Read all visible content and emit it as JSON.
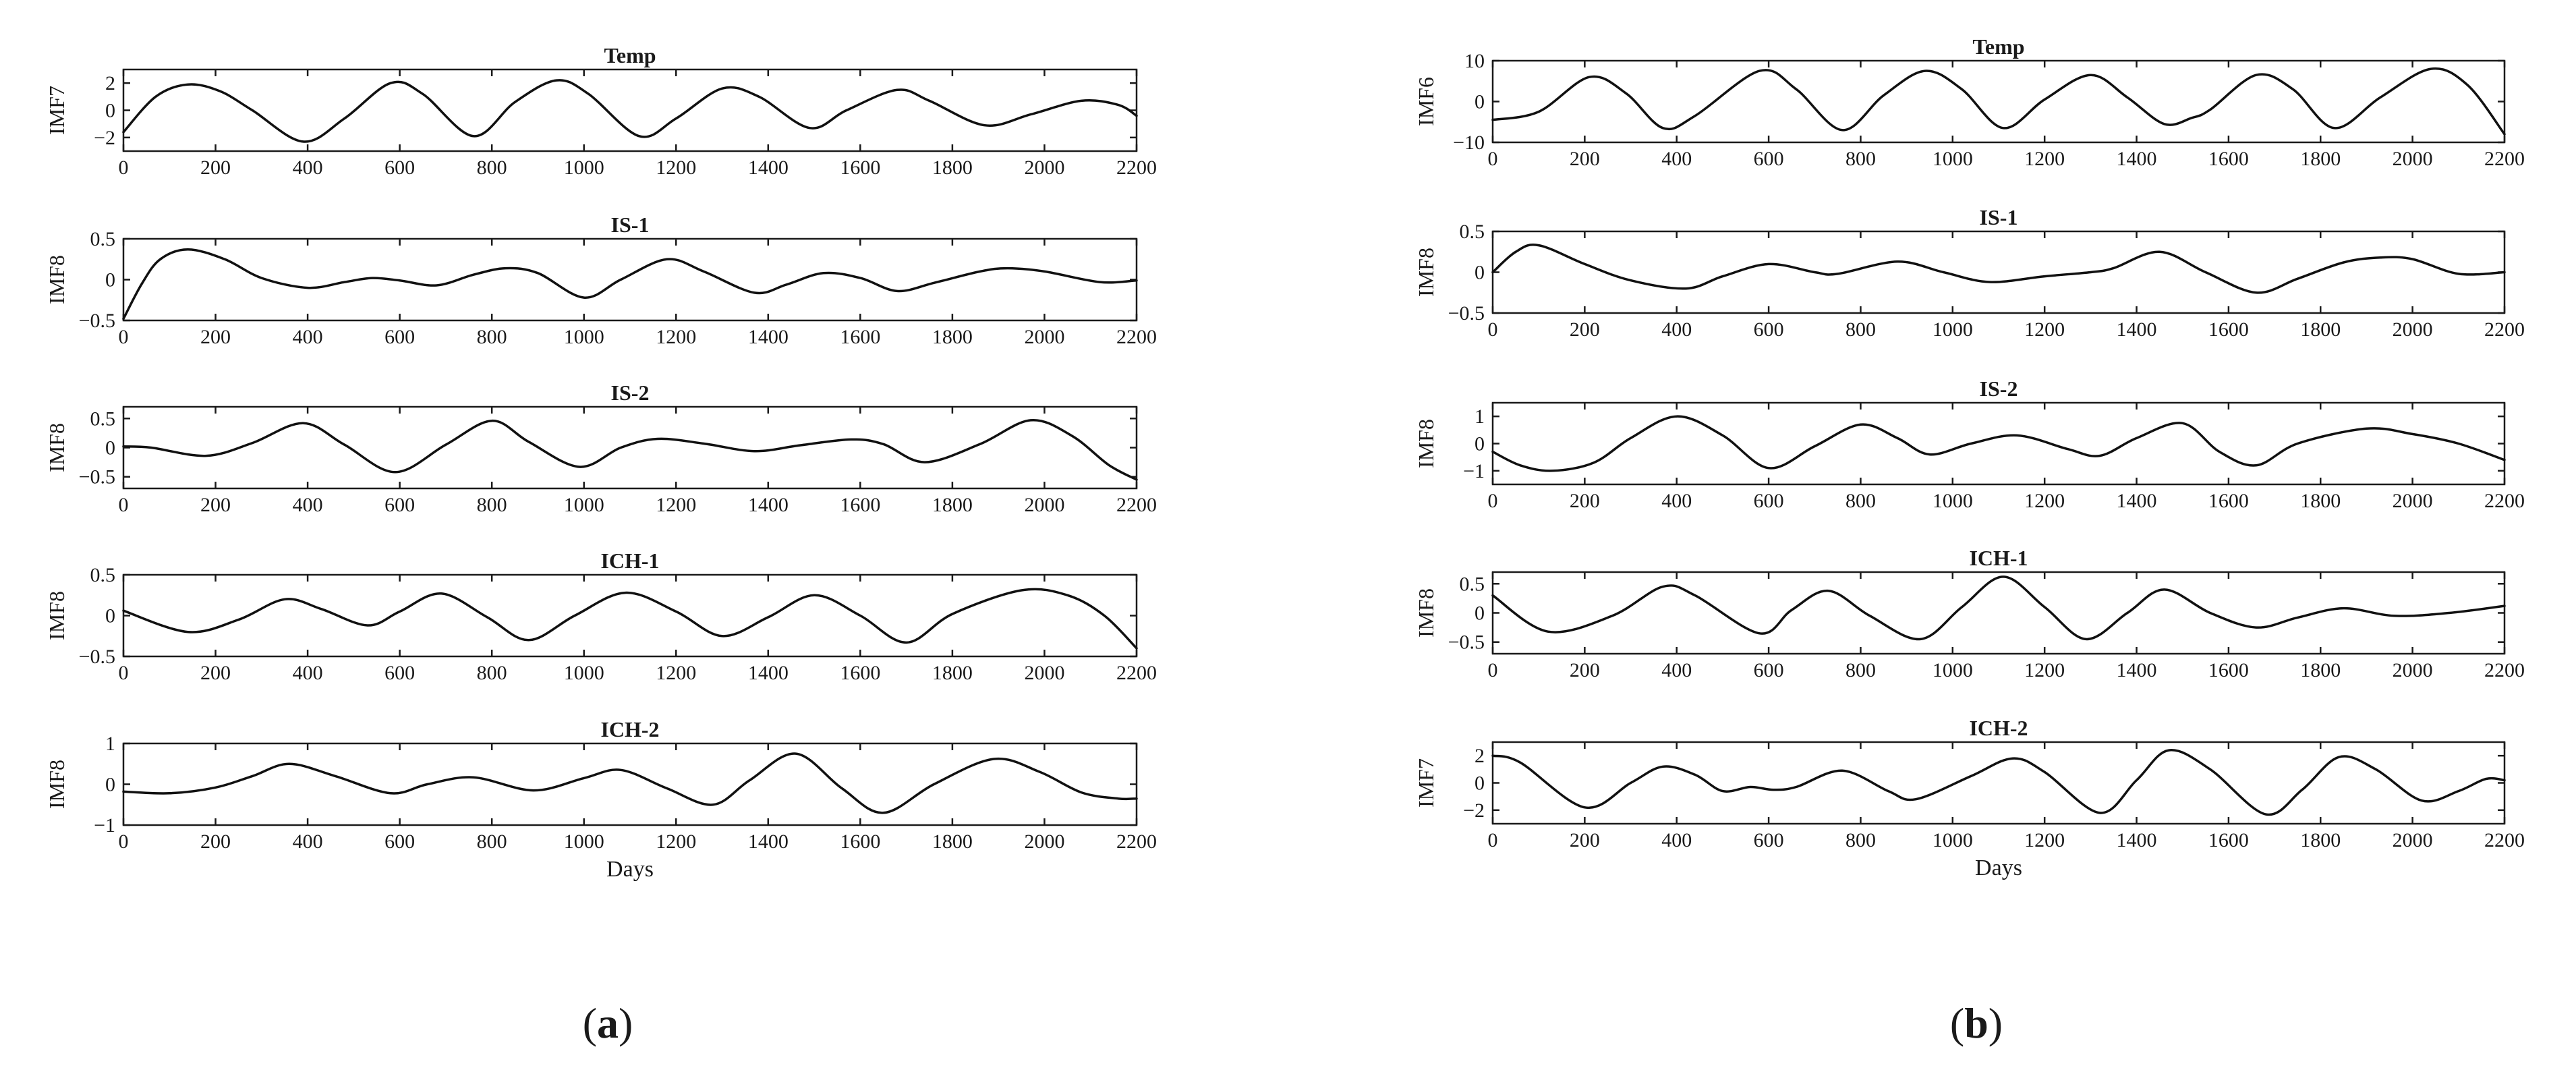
{
  "figure": {
    "captions": [
      "(a)",
      "(b)"
    ],
    "caption_parts": [
      {
        "open": "(",
        "letter": "a",
        "close": ")"
      },
      {
        "open": "(",
        "letter": "b",
        "close": ")"
      }
    ]
  },
  "chart_data": [
    {
      "type": "line",
      "group": "a",
      "title": "Temp",
      "ylabel": "IMF7",
      "xlabel": "",
      "xlim": [
        0,
        2200
      ],
      "ylim": [
        -3,
        3
      ],
      "xticks": [
        "0",
        "200",
        "400",
        "600",
        "800",
        "1000",
        "1200",
        "1400",
        "1600",
        "1800",
        "2000",
        "2200"
      ],
      "yticks": [
        "2",
        "0",
        "−2"
      ],
      "series": [
        {
          "x": [
            0,
            70,
            140,
            210,
            280,
            390,
            480,
            580,
            650,
            760,
            850,
            940,
            1010,
            1120,
            1200,
            1300,
            1380,
            1490,
            1570,
            1680,
            1750,
            1870,
            1970,
            2080,
            2160,
            2200
          ],
          "y": [
            -1.6,
            1.0,
            1.9,
            1.4,
            0.0,
            -2.3,
            -0.6,
            2.0,
            1.2,
            -1.9,
            0.6,
            2.2,
            1.2,
            -1.9,
            -0.6,
            1.6,
            1.0,
            -1.3,
            0.0,
            1.5,
            0.7,
            -1.1,
            -0.3,
            0.7,
            0.4,
            -0.4
          ]
        }
      ]
    },
    {
      "type": "line",
      "group": "a",
      "title": "IS-1",
      "ylabel": "IMF8",
      "xlabel": "",
      "xlim": [
        0,
        2200
      ],
      "ylim": [
        -0.5,
        0.5
      ],
      "xticks": [
        "0",
        "200",
        "400",
        "600",
        "800",
        "1000",
        "1200",
        "1400",
        "1600",
        "1800",
        "2000",
        "2200"
      ],
      "yticks": [
        "0.5",
        "0",
        "−0.5"
      ],
      "series": [
        {
          "x": [
            0,
            40,
            80,
            140,
            220,
            300,
            400,
            480,
            540,
            600,
            680,
            760,
            830,
            900,
            1000,
            1080,
            1180,
            1260,
            1370,
            1440,
            1520,
            1600,
            1680,
            1760,
            1860,
            1920,
            2000,
            2120,
            2200
          ],
          "y": [
            -0.48,
            -0.05,
            0.25,
            0.37,
            0.25,
            0.02,
            -0.1,
            -0.03,
            0.02,
            -0.01,
            -0.07,
            0.06,
            0.14,
            0.08,
            -0.22,
            0.0,
            0.25,
            0.1,
            -0.16,
            -0.06,
            0.08,
            0.02,
            -0.14,
            -0.04,
            0.1,
            0.14,
            0.1,
            -0.03,
            -0.01
          ]
        }
      ]
    },
    {
      "type": "line",
      "group": "a",
      "title": "IS-2",
      "ylabel": "IMF8",
      "xlabel": "",
      "xlim": [
        0,
        2200
      ],
      "ylim": [
        -0.7,
        0.7
      ],
      "xticks": [
        "0",
        "200",
        "400",
        "600",
        "800",
        "1000",
        "1200",
        "1400",
        "1600",
        "1800",
        "2000",
        "2200"
      ],
      "yticks": [
        "0.5",
        "0",
        "−0.5"
      ],
      "series": [
        {
          "x": [
            0,
            60,
            180,
            280,
            390,
            480,
            590,
            700,
            800,
            880,
            990,
            1080,
            1160,
            1260,
            1370,
            1470,
            1580,
            1650,
            1740,
            1860,
            1970,
            2060,
            2140,
            2200
          ],
          "y": [
            0.02,
            0.0,
            -0.14,
            0.08,
            0.42,
            0.05,
            -0.42,
            0.05,
            0.46,
            0.1,
            -0.33,
            0.0,
            0.15,
            0.07,
            -0.06,
            0.04,
            0.14,
            0.06,
            -0.25,
            0.06,
            0.47,
            0.2,
            -0.3,
            -0.55
          ]
        }
      ]
    },
    {
      "type": "line",
      "group": "a",
      "title": "ICH-1",
      "ylabel": "IMF8",
      "xlabel": "",
      "xlim": [
        0,
        2200
      ],
      "ylim": [
        -0.5,
        0.5
      ],
      "xticks": [
        "0",
        "200",
        "400",
        "600",
        "800",
        "1000",
        "1200",
        "1400",
        "1600",
        "1800",
        "2000",
        "2200"
      ],
      "yticks": [
        "0.5",
        "0",
        "−0.5"
      ],
      "series": [
        {
          "x": [
            0,
            140,
            250,
            350,
            430,
            530,
            600,
            690,
            790,
            880,
            980,
            1090,
            1200,
            1300,
            1400,
            1500,
            1600,
            1700,
            1800,
            1950,
            2050,
            2130,
            2200
          ],
          "y": [
            0.06,
            -0.2,
            -0.05,
            0.2,
            0.08,
            -0.12,
            0.05,
            0.27,
            -0.02,
            -0.3,
            0.0,
            0.28,
            0.05,
            -0.25,
            -0.02,
            0.25,
            0.0,
            -0.33,
            0.02,
            0.31,
            0.25,
            0.0,
            -0.4
          ]
        }
      ]
    },
    {
      "type": "line",
      "group": "a",
      "title": "ICH-2",
      "ylabel": "IMF8",
      "xlabel": "Days",
      "xlim": [
        0,
        2200
      ],
      "ylim": [
        -1,
        1
      ],
      "xticks": [
        "0",
        "200",
        "400",
        "600",
        "800",
        "1000",
        "1200",
        "1400",
        "1600",
        "1800",
        "2000",
        "2200"
      ],
      "yticks": [
        "1",
        "0",
        "−1"
      ],
      "series": [
        {
          "x": [
            0,
            100,
            200,
            280,
            360,
            460,
            580,
            660,
            760,
            890,
            1000,
            1080,
            1180,
            1280,
            1360,
            1460,
            1560,
            1650,
            1760,
            1890,
            1990,
            2080,
            2160,
            2200
          ],
          "y": [
            -0.18,
            -0.22,
            -0.08,
            0.2,
            0.5,
            0.2,
            -0.22,
            0.0,
            0.17,
            -0.15,
            0.15,
            0.35,
            -0.1,
            -0.5,
            0.1,
            0.75,
            -0.1,
            -0.7,
            0.0,
            0.62,
            0.3,
            -0.2,
            -0.35,
            -0.35
          ]
        }
      ]
    },
    {
      "type": "line",
      "group": "b",
      "title": "Temp",
      "ylabel": "IMF6",
      "xlabel": "",
      "xlim": [
        0,
        2200
      ],
      "ylim": [
        -10,
        10
      ],
      "xticks": [
        "0",
        "200",
        "400",
        "600",
        "800",
        "1000",
        "1200",
        "1400",
        "1600",
        "1800",
        "2000",
        "2200"
      ],
      "yticks": [
        "10",
        "0",
        "−10"
      ],
      "series": [
        {
          "x": [
            0,
            100,
            210,
            290,
            370,
            440,
            580,
            660,
            760,
            850,
            940,
            1020,
            1110,
            1200,
            1300,
            1380,
            1460,
            1520,
            1560,
            1660,
            1740,
            1830,
            1930,
            2040,
            2120,
            2200
          ],
          "y": [
            -4.5,
            -2.5,
            6.0,
            2.0,
            -6.5,
            -3.5,
            7.5,
            3.0,
            -7.0,
            1.5,
            7.5,
            3.0,
            -6.5,
            0.5,
            6.5,
            1.0,
            -5.5,
            -4.0,
            -2.0,
            6.5,
            3.0,
            -6.5,
            1.0,
            8.0,
            4.0,
            -8.0
          ]
        }
      ]
    },
    {
      "type": "line",
      "group": "b",
      "title": "IS-1",
      "ylabel": "IMF8",
      "xlabel": "",
      "xlim": [
        0,
        2200
      ],
      "ylim": [
        -0.5,
        0.5
      ],
      "xticks": [
        "0",
        "200",
        "400",
        "600",
        "800",
        "1000",
        "1200",
        "1400",
        "1600",
        "1800",
        "2000",
        "2200"
      ],
      "yticks": [
        "0.5",
        "0",
        "−0.5"
      ],
      "series": [
        {
          "x": [
            0,
            50,
            100,
            200,
            300,
            420,
            500,
            600,
            700,
            750,
            880,
            980,
            1080,
            1200,
            1300,
            1350,
            1450,
            1550,
            1660,
            1750,
            1850,
            1930,
            2000,
            2100,
            2200
          ],
          "y": [
            0.0,
            0.25,
            0.33,
            0.1,
            -0.1,
            -0.2,
            -0.05,
            0.1,
            0.0,
            -0.02,
            0.13,
            0.0,
            -0.12,
            -0.05,
            0.0,
            0.05,
            0.25,
            0.0,
            -0.25,
            -0.08,
            0.12,
            0.18,
            0.16,
            -0.02,
            0.0
          ]
        }
      ]
    },
    {
      "type": "line",
      "group": "b",
      "title": "IS-2",
      "ylabel": "IMF8",
      "xlabel": "",
      "xlim": [
        0,
        2200
      ],
      "ylim": [
        -1.5,
        1.5
      ],
      "xticks": [
        "0",
        "200",
        "400",
        "600",
        "800",
        "1000",
        "1200",
        "1400",
        "1600",
        "1800",
        "2000",
        "2200"
      ],
      "yticks": [
        "1",
        "0",
        "−1"
      ],
      "series": [
        {
          "x": [
            0,
            60,
            130,
            220,
            300,
            400,
            500,
            600,
            700,
            800,
            880,
            950,
            1040,
            1140,
            1250,
            1320,
            1400,
            1500,
            1580,
            1660,
            1750,
            1900,
            2000,
            2100,
            2200
          ],
          "y": [
            -0.3,
            -0.8,
            -1.0,
            -0.7,
            0.2,
            1.0,
            0.3,
            -0.9,
            -0.1,
            0.7,
            0.2,
            -0.4,
            0.0,
            0.3,
            -0.2,
            -0.45,
            0.2,
            0.75,
            -0.3,
            -0.8,
            0.0,
            0.55,
            0.35,
            0.0,
            -0.6
          ]
        }
      ]
    },
    {
      "type": "line",
      "group": "b",
      "title": "ICH-1",
      "ylabel": "IMF8",
      "xlabel": "",
      "xlim": [
        0,
        2200
      ],
      "ylim": [
        -0.7,
        0.7
      ],
      "xticks": [
        "0",
        "200",
        "400",
        "600",
        "800",
        "1000",
        "1200",
        "1400",
        "1600",
        "1800",
        "2000",
        "2200"
      ],
      "yticks": [
        "0.5",
        "0",
        "−0.5"
      ],
      "series": [
        {
          "x": [
            0,
            120,
            260,
            370,
            440,
            580,
            650,
            730,
            820,
            930,
            1020,
            1110,
            1200,
            1290,
            1380,
            1460,
            1560,
            1660,
            1750,
            1850,
            1960,
            2080,
            2200
          ],
          "y": [
            0.3,
            -0.32,
            -0.05,
            0.45,
            0.3,
            -0.35,
            0.05,
            0.38,
            -0.05,
            -0.45,
            0.1,
            0.62,
            0.1,
            -0.45,
            0.0,
            0.4,
            0.0,
            -0.25,
            -0.08,
            0.08,
            -0.05,
            0.0,
            0.12
          ]
        }
      ]
    },
    {
      "type": "line",
      "group": "b",
      "title": "ICH-2",
      "ylabel": "IMF7",
      "xlabel": "Days",
      "xlim": [
        0,
        2200
      ],
      "ylim": [
        -3,
        3
      ],
      "xticks": [
        "0",
        "200",
        "400",
        "600",
        "800",
        "1000",
        "1200",
        "1400",
        "1600",
        "1800",
        "2000",
        "2200"
      ],
      "yticks": [
        "2",
        "0",
        "−2"
      ],
      "series": [
        {
          "x": [
            0,
            60,
            200,
            300,
            370,
            440,
            500,
            560,
            610,
            660,
            760,
            860,
            920,
            1040,
            1130,
            1200,
            1320,
            1400,
            1470,
            1560,
            1680,
            1760,
            1840,
            1920,
            2020,
            2100,
            2160,
            2200
          ],
          "y": [
            2.0,
            1.5,
            -1.8,
            0.0,
            1.2,
            0.6,
            -0.6,
            -0.3,
            -0.5,
            -0.3,
            0.9,
            -0.6,
            -1.2,
            0.5,
            1.8,
            0.8,
            -2.2,
            0.2,
            2.4,
            1.0,
            -2.3,
            -0.5,
            1.9,
            1.0,
            -1.3,
            -0.6,
            0.3,
            0.2
          ]
        }
      ]
    }
  ]
}
